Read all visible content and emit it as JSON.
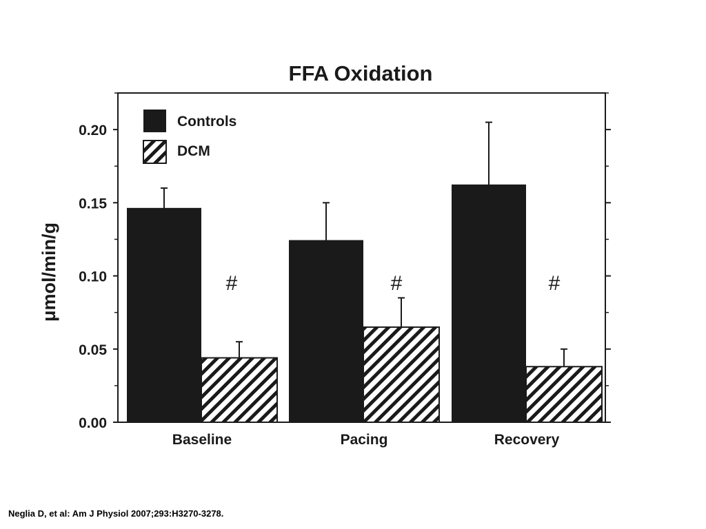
{
  "chart_data": {
    "type": "bar",
    "title": "FFA Oxidation",
    "xlabel": "",
    "ylabel": "μmol/min/g",
    "categories": [
      "Baseline",
      "Pacing",
      "Recovery"
    ],
    "ylim": [
      0,
      0.225
    ],
    "yticks": [
      "0.00",
      "0.05",
      "0.10",
      "0.15",
      "0.20"
    ],
    "legend_position": "top-left",
    "series": [
      {
        "name": "Controls",
        "pattern": "solid",
        "color": "#1a1a1a",
        "values": [
          0.146,
          0.124,
          0.162
        ],
        "errors": [
          0.014,
          0.026,
          0.043
        ]
      },
      {
        "name": "DCM",
        "pattern": "hatched",
        "color": "#1a1a1a",
        "values": [
          0.044,
          0.065,
          0.038
        ],
        "errors": [
          0.011,
          0.02,
          0.012
        ]
      }
    ],
    "annotations": [
      "#",
      "#",
      "#"
    ]
  },
  "citation": "Neglia D, et al: Am J Physiol 2007;293:H3270-3278."
}
